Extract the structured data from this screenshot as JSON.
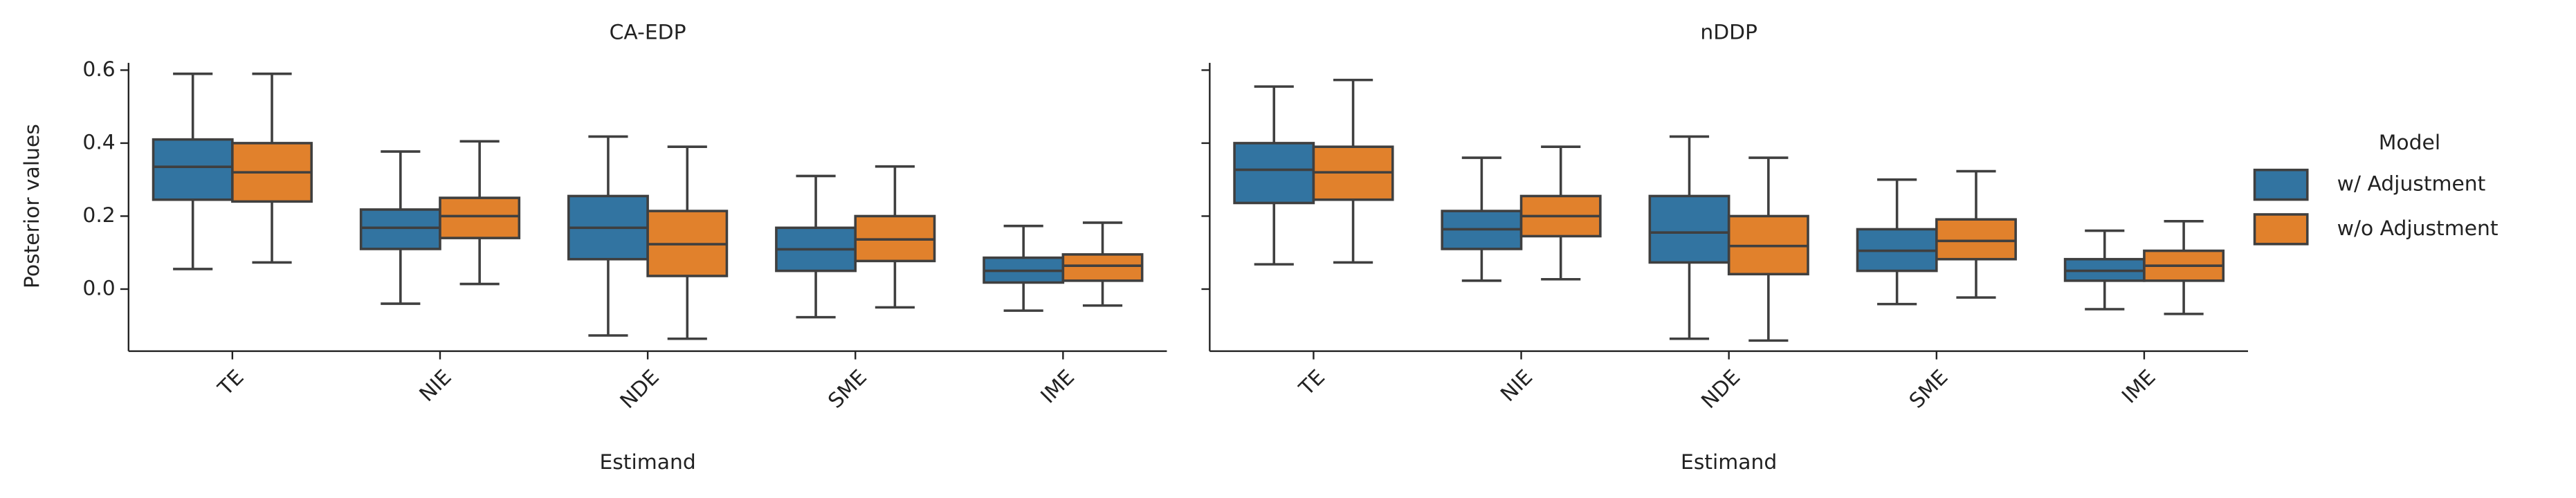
{
  "chart_data": [
    {
      "type": "box",
      "title": "CA-EDP",
      "xlabel": "Estimand",
      "ylabel": "Posterior values",
      "legend_title": "Model",
      "categories": [
        "TE",
        "NIE",
        "NDE",
        "SME",
        "IME"
      ],
      "ylim": [
        -0.17,
        0.62
      ],
      "yticks": [
        {
          "value": 0,
          "label": "0.0"
        },
        0.2,
        0.4,
        0.6
      ],
      "series": [
        {
          "name": "w/ Adjustment",
          "color": "#3274a1",
          "values": [
            {
              "min": 0.055,
              "q1": 0.245,
              "median": 0.335,
              "q3": 0.41,
              "max": 0.59
            },
            {
              "min": -0.04,
              "q1": 0.11,
              "median": 0.168,
              "q3": 0.218,
              "max": 0.377
            },
            {
              "min": -0.127,
              "q1": 0.082,
              "median": 0.168,
              "q3": 0.255,
              "max": 0.418
            },
            {
              "min": -0.077,
              "q1": 0.05,
              "median": 0.109,
              "q3": 0.168,
              "max": 0.31
            },
            {
              "min": -0.059,
              "q1": 0.018,
              "median": 0.05,
              "q3": 0.086,
              "max": 0.173
            }
          ]
        },
        {
          "name": "w/o Adjustment",
          "color": "#e1812c",
          "values": [
            {
              "min": 0.073,
              "q1": 0.24,
              "median": 0.32,
              "q3": 0.4,
              "max": 0.59
            },
            {
              "min": 0.014,
              "q1": 0.14,
              "median": 0.2,
              "q3": 0.25,
              "max": 0.405
            },
            {
              "min": -0.136,
              "q1": 0.036,
              "median": 0.123,
              "q3": 0.214,
              "max": 0.39
            },
            {
              "min": -0.05,
              "q1": 0.077,
              "median": 0.136,
              "q3": 0.2,
              "max": 0.336
            },
            {
              "min": -0.045,
              "q1": 0.023,
              "median": 0.064,
              "q3": 0.095,
              "max": 0.182
            }
          ]
        }
      ]
    },
    {
      "type": "box",
      "title": "nDDP",
      "xlabel": "Estimand",
      "categories": [
        "TE",
        "NIE",
        "NDE",
        "SME",
        "IME"
      ],
      "series": [
        {
          "name": "w/ Adjustment",
          "color": "#3274a1",
          "values": [
            {
              "min": 0.068,
              "q1": 0.236,
              "median": 0.327,
              "q3": 0.4,
              "max": 0.555
            },
            {
              "min": 0.023,
              "q1": 0.11,
              "median": 0.164,
              "q3": 0.214,
              "max": 0.36
            },
            {
              "min": -0.136,
              "q1": 0.073,
              "median": 0.155,
              "q3": 0.255,
              "max": 0.418
            },
            {
              "min": -0.041,
              "q1": 0.05,
              "median": 0.105,
              "q3": 0.164,
              "max": 0.3
            },
            {
              "min": -0.055,
              "q1": 0.023,
              "median": 0.05,
              "q3": 0.082,
              "max": 0.16
            }
          ]
        },
        {
          "name": "w/o Adjustment",
          "color": "#e1812c",
          "values": [
            {
              "min": 0.073,
              "q1": 0.245,
              "median": 0.32,
              "q3": 0.39,
              "max": 0.573
            },
            {
              "min": 0.027,
              "q1": 0.145,
              "median": 0.2,
              "q3": 0.255,
              "max": 0.39
            },
            {
              "min": -0.141,
              "q1": 0.041,
              "median": 0.118,
              "q3": 0.2,
              "max": 0.36
            },
            {
              "min": -0.023,
              "q1": 0.082,
              "median": 0.132,
              "q3": 0.191,
              "max": 0.323
            },
            {
              "min": -0.068,
              "q1": 0.023,
              "median": 0.064,
              "q3": 0.105,
              "max": 0.186
            }
          ]
        }
      ]
    }
  ]
}
